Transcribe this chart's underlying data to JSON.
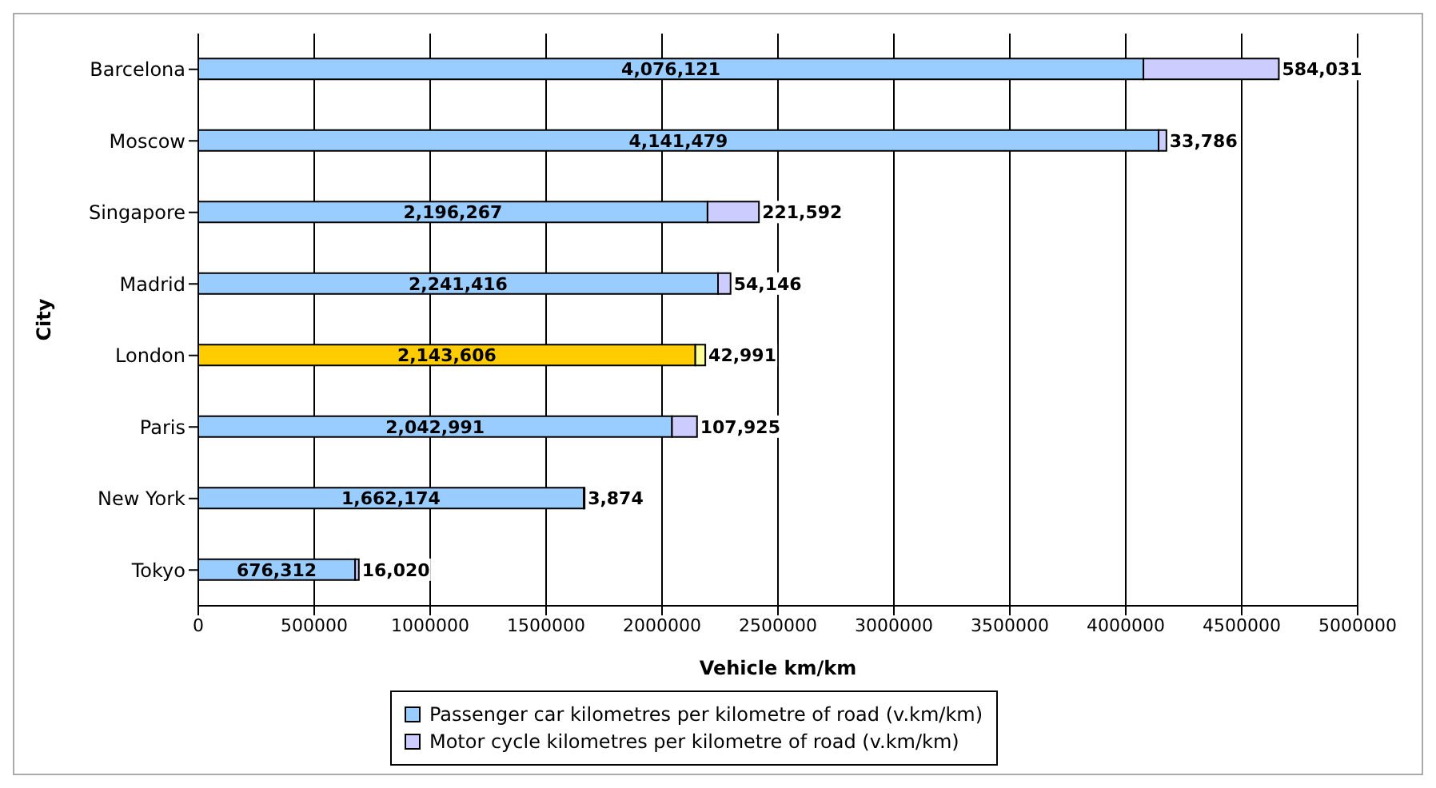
{
  "chart_data": {
    "type": "bar",
    "orientation": "horizontal",
    "stacked": true,
    "categories": [
      "Barcelona",
      "Moscow",
      "Singapore",
      "Madrid",
      "London",
      "Paris",
      "New York",
      "Tokyo"
    ],
    "series": [
      {
        "name": "Passenger car kilometres per kilometre of road (v.km/km)",
        "color": "#99ccff",
        "colors": [
          "#99ccff",
          "#99ccff",
          "#99ccff",
          "#99ccff",
          "#ffcc00",
          "#99ccff",
          "#99ccff",
          "#99ccff"
        ],
        "values": [
          4076121,
          4141479,
          2196267,
          2241416,
          2143606,
          2042991,
          1662174,
          676312
        ],
        "value_labels": [
          "4,076,121",
          "4,141,479",
          "2,196,267",
          "2,241,416",
          "2,143,606",
          "2,042,991",
          "1,662,174",
          "676,312"
        ]
      },
      {
        "name": "Motor cycle kilometres per kilometre of road (v.km/km)",
        "color": "#ccccff",
        "colors": [
          "#ccccff",
          "#ccccff",
          "#ccccff",
          "#ccccff",
          "#ffff99",
          "#ccccff",
          "#ccccff",
          "#ccccff"
        ],
        "values": [
          584031,
          33786,
          221592,
          54146,
          42991,
          107925,
          3874,
          16020
        ],
        "value_labels": [
          "584,031",
          "33,786",
          "221,592",
          "54,146",
          "42,991",
          "107,925",
          "3,874",
          "16,020"
        ]
      }
    ],
    "xlabel": "Vehicle km/km",
    "ylabel": "City",
    "xlim": [
      0,
      5000000
    ],
    "xticks": [
      0,
      500000,
      1000000,
      1500000,
      2000000,
      2500000,
      3000000,
      3500000,
      4000000,
      4500000,
      5000000
    ],
    "grid": "x",
    "legend": "bottom"
  }
}
